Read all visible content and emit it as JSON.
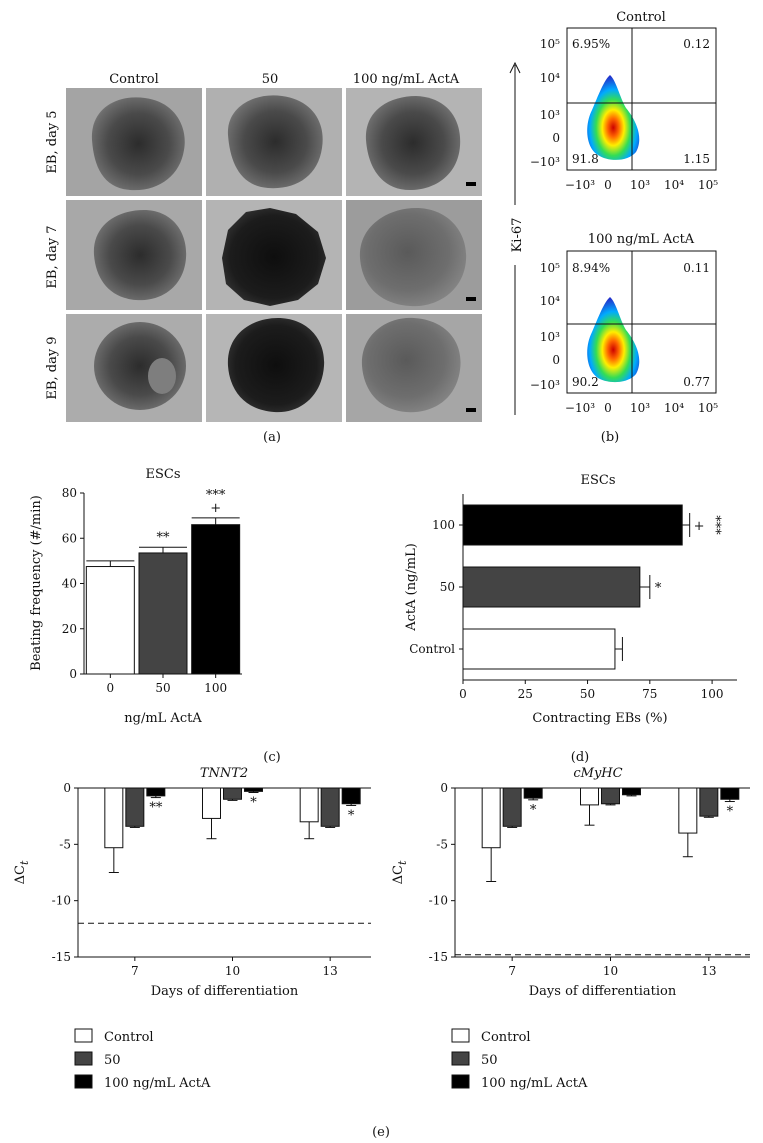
{
  "panel_a": {
    "label": "(a)",
    "col_headers": [
      "Control",
      "50",
      "100 ng/mL ActA"
    ],
    "row_labels": [
      "EB, day 5",
      "EB, day 7",
      "EB, day 9"
    ]
  },
  "panel_b": {
    "label": "(b)",
    "y_label": "Ki-67",
    "x_ticks": [
      "−10³",
      "0",
      "10³",
      "10⁴",
      "10⁵"
    ],
    "y_ticks": [
      "10⁵",
      "10⁴",
      "10³",
      "0",
      "−10³"
    ],
    "plots": [
      {
        "title": "Control",
        "q_ul": "6.95%",
        "q_ur": "0.12",
        "q_ll": "91.8",
        "q_lr": "1.15"
      },
      {
        "title": "100 ng/mL ActA",
        "q_ul": "8.94%",
        "q_ur": "0.11",
        "q_ll": "90.2",
        "q_lr": "0.77"
      }
    ]
  },
  "chart_data": [
    {
      "panel": "(c)",
      "type": "bar",
      "title": "ESCs",
      "xlabel": "ng/mL ActA",
      "ylabel": "Beating frequency (#/min)",
      "categories": [
        "0",
        "50",
        "100"
      ],
      "values": [
        47.5,
        53.5,
        66
      ],
      "errors": [
        2.5,
        2.5,
        3
      ],
      "colors": [
        "#ffffff",
        "#444444",
        "#000000"
      ],
      "annotations": [
        "",
        "**",
        "***\n+"
      ],
      "ylim": [
        0,
        80
      ],
      "yticks": [
        0,
        20,
        40,
        60,
        80
      ]
    },
    {
      "panel": "(d)",
      "type": "bar",
      "orientation": "horizontal",
      "title": "ESCs",
      "xlabel": "Contracting EBs (%)",
      "ylabel": "ActA (ng/mL)",
      "categories": [
        "Control",
        "50",
        "100"
      ],
      "values": [
        61,
        71,
        88
      ],
      "errors": [
        3,
        4,
        3
      ],
      "colors": [
        "#ffffff",
        "#444444",
        "#000000"
      ],
      "annotations": [
        "",
        "*",
        "+ ***"
      ],
      "xlim": [
        0,
        110
      ],
      "xticks": [
        0,
        25,
        50,
        75,
        100
      ]
    },
    {
      "panel": "(e) left",
      "type": "bar",
      "title": "TNNT2",
      "xlabel": "Days of differentiation",
      "ylabel": "ΔCt",
      "categories": [
        "7",
        "10",
        "13"
      ],
      "series": [
        {
          "name": "Control",
          "values": [
            -5.3,
            -2.7,
            -3.0
          ],
          "errors": [
            2.2,
            1.8,
            1.5
          ],
          "color": "#ffffff"
        },
        {
          "name": "50",
          "values": [
            -3.4,
            -1.0,
            -3.4
          ],
          "errors": [
            0.1,
            0.1,
            0.1
          ],
          "color": "#444444"
        },
        {
          "name": "100 ng/mL ActA",
          "values": [
            -0.7,
            -0.3,
            -1.4
          ],
          "errors": [
            0.15,
            0.1,
            0.15
          ],
          "color": "#000000"
        }
      ],
      "annotations": [
        "**",
        "*",
        "*"
      ],
      "reference_line": -12,
      "ylim": [
        -15,
        0
      ],
      "yticks": [
        0,
        -5,
        -10,
        -15
      ]
    },
    {
      "panel": "(e) right",
      "type": "bar",
      "title": "cMyHC",
      "xlabel": "Days of differentiation",
      "ylabel": "ΔCt",
      "categories": [
        "7",
        "10",
        "13"
      ],
      "series": [
        {
          "name": "Control",
          "values": [
            -5.3,
            -1.5,
            -4.0
          ],
          "errors": [
            3.0,
            1.8,
            2.1
          ],
          "color": "#ffffff"
        },
        {
          "name": "50",
          "values": [
            -3.4,
            -1.4,
            -2.5
          ],
          "errors": [
            0.1,
            0.1,
            0.1
          ],
          "color": "#444444"
        },
        {
          "name": "100 ng/mL ActA",
          "values": [
            -0.9,
            -0.6,
            -1.0
          ],
          "errors": [
            0.15,
            0.1,
            0.2
          ],
          "color": "#000000"
        }
      ],
      "annotations": [
        "*",
        "",
        "*"
      ],
      "reference_line": -14.8,
      "ylim": [
        -15,
        0
      ],
      "yticks": [
        0,
        -5,
        -10,
        -15
      ]
    }
  ],
  "panel_labels": {
    "c": "(c)",
    "d": "(d)",
    "e": "(e)"
  },
  "ylabel_e_main": "ΔC",
  "ylabel_e_sub": "t"
}
